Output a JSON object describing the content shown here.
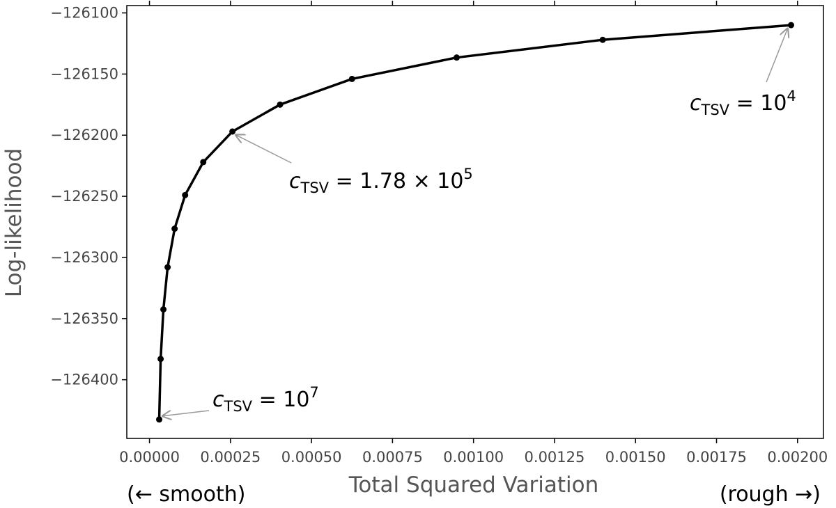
{
  "chart_data": {
    "type": "line",
    "x_label": "Total Squared Variation",
    "y_label": "Log-likelihood",
    "x": [
      3e-05,
      3.45e-05,
      4.3e-05,
      5.6e-05,
      7.76e-05,
      0.00011,
      0.000166,
      0.000256,
      0.000403,
      0.000625,
      0.000948,
      0.0013987,
      0.00198
    ],
    "values": [
      -126432.5,
      -126383,
      -126342.5,
      -126308,
      -126276.5,
      -126249,
      -126222,
      -126197,
      -126175,
      -126154,
      -126136.5,
      -126122,
      -126110
    ],
    "color": "#000000",
    "xlim": [
      -7e-05,
      0.00208
    ],
    "ylim": [
      -126448,
      -126094
    ],
    "xticks": [
      {
        "value": 0,
        "label": "0.00000"
      },
      {
        "value": 0.00025,
        "label": "0.00025"
      },
      {
        "value": 0.0005,
        "label": "0.00050"
      },
      {
        "value": 0.00075,
        "label": "0.00075"
      },
      {
        "value": 0.001,
        "label": "0.00100"
      },
      {
        "value": 0.00125,
        "label": "0.00125"
      },
      {
        "value": 0.0015,
        "label": "0.00150"
      },
      {
        "value": 0.00175,
        "label": "0.00175"
      },
      {
        "value": 0.002,
        "label": "0.00200"
      }
    ],
    "yticks": [
      {
        "value": -126100,
        "label": "−126100"
      },
      {
        "value": -126150,
        "label": "−126150"
      },
      {
        "value": -126200,
        "label": "−126200"
      },
      {
        "value": -126250,
        "label": "−126250"
      },
      {
        "value": -126300,
        "label": "−126300"
      },
      {
        "value": -126350,
        "label": "−126350"
      },
      {
        "value": -126400,
        "label": "−126400"
      }
    ],
    "annotations": [
      {
        "symbol": "c",
        "subscript": "TSV",
        "text": " = 10",
        "superscript": "4",
        "x": 0.00198,
        "y": -126110
      },
      {
        "symbol": "c",
        "subscript": "TSV",
        "text": " = 1.78 × 10",
        "superscript": "5",
        "x": 0.000256,
        "y": -126197
      },
      {
        "symbol": "c",
        "subscript": "TSV",
        "text": " = 10",
        "superscript": "7",
        "x": 3e-05,
        "y": -126432.5
      }
    ],
    "left_note": "(←  smooth)",
    "right_note": "(rough →)"
  }
}
